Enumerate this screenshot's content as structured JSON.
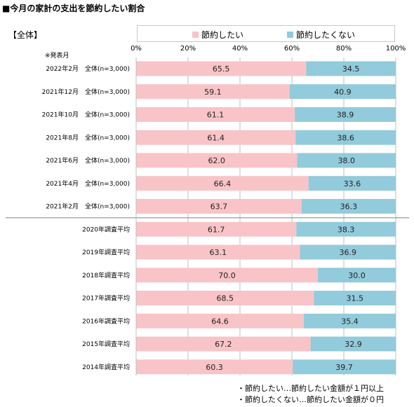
{
  "title": "■今月の家計の支出を節約したい割合",
  "group_tag": "【全体】",
  "publish_note": "※発表月",
  "legend": [
    {
      "label": "節約したい",
      "color": "#f9c4c7"
    },
    {
      "label": "節約したくない",
      "color": "#92cbdb"
    }
  ],
  "footnotes": [
    "・節約したい…節約したい金額が１円以上",
    "・節約したくない…節約したい金額が０円"
  ],
  "chart_data": {
    "type": "bar",
    "orientation": "horizontal",
    "stacked": true,
    "percent_axis": true,
    "xlim": [
      0,
      100
    ],
    "x_ticks": [
      "0%",
      "20%",
      "40%",
      "60%",
      "80%",
      "100%"
    ],
    "categories": [
      "2022年2月　全体(n=3,000)",
      "2021年12月　全体(n=3,000)",
      "2021年10月　全体(n=3,000)",
      "2021年8月　全体(n=3,000)",
      "2021年6月　全体(n=3,000)",
      "2021年4月　全体(n=3,000)",
      "2021年2月　全体(n=3,000)",
      "2020年調査平均",
      "2019年調査平均",
      "2018年調査平均",
      "2017年調査平均",
      "2016年調査平均",
      "2015年調査平均",
      "2014年調査平均"
    ],
    "series": [
      {
        "name": "節約したい",
        "color": "#f9c4c7",
        "values": [
          65.5,
          59.1,
          61.1,
          61.4,
          62.0,
          66.4,
          63.7,
          61.7,
          63.1,
          70.0,
          68.5,
          64.6,
          67.2,
          60.3
        ],
        "labels": [
          "65.5",
          "59.1",
          "61.1",
          "61.4",
          "62.0",
          "66.4",
          "63.7",
          "61.7",
          "63.1",
          "70.0",
          "68.5",
          "64.6",
          "67.2",
          "60.3"
        ]
      },
      {
        "name": "節約したくない",
        "color": "#92cbdb",
        "values": [
          34.5,
          40.9,
          38.9,
          38.6,
          38.0,
          33.6,
          36.3,
          38.3,
          36.9,
          30.0,
          31.5,
          35.4,
          32.9,
          39.7
        ],
        "labels": [
          "34.5",
          "40.9",
          "38.9",
          "38.6",
          "38.0",
          "33.6",
          "36.3",
          "38.3",
          "36.9",
          "30.0",
          "31.5",
          "35.4",
          "32.9",
          "39.7"
        ]
      }
    ],
    "separator_after_index": 6,
    "grid": true,
    "legend_position": "top"
  }
}
